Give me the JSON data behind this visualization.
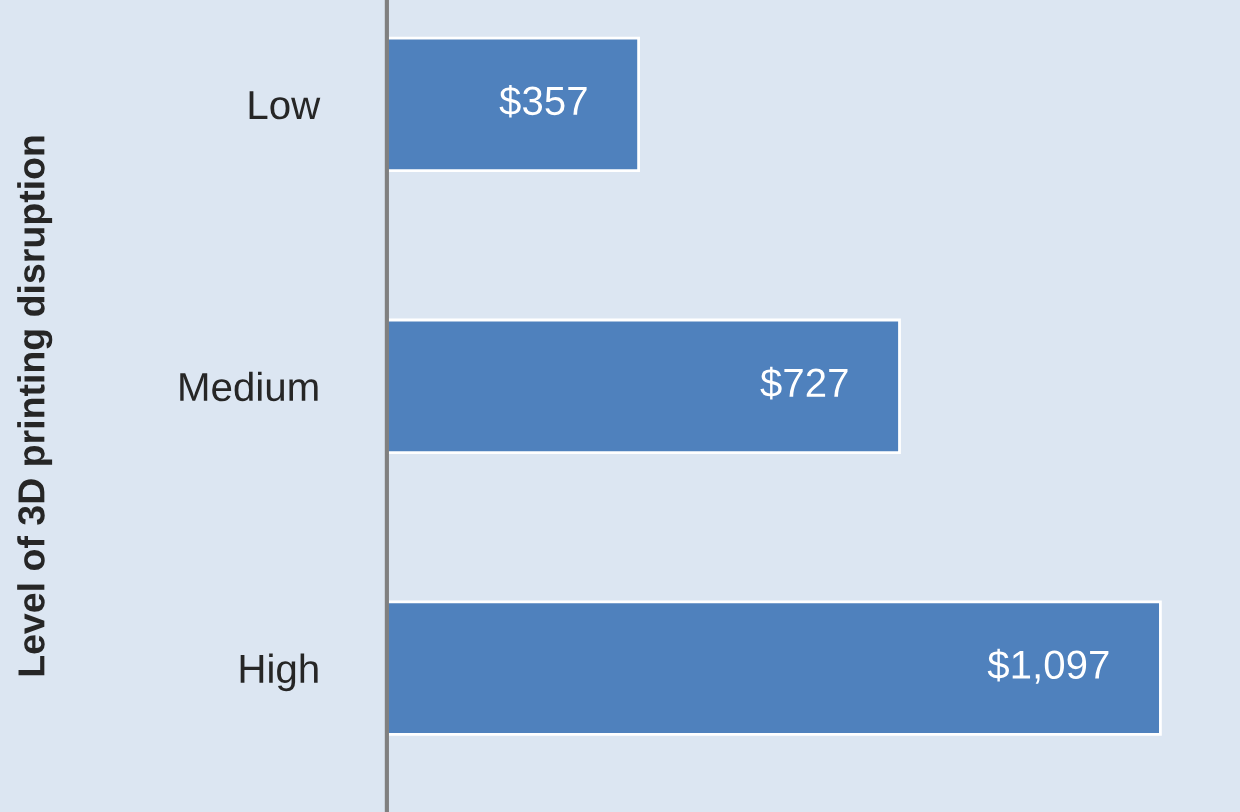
{
  "chart_data": {
    "type": "bar",
    "orientation": "horizontal",
    "ylabel": "Level of 3D printing disruption",
    "categories": [
      "Low",
      "Medium",
      "High"
    ],
    "values": [
      357,
      727,
      1097
    ],
    "value_labels": [
      "$357",
      "$727",
      "$1,097"
    ],
    "color": "#4f81bd",
    "grid": false,
    "legend": false
  }
}
